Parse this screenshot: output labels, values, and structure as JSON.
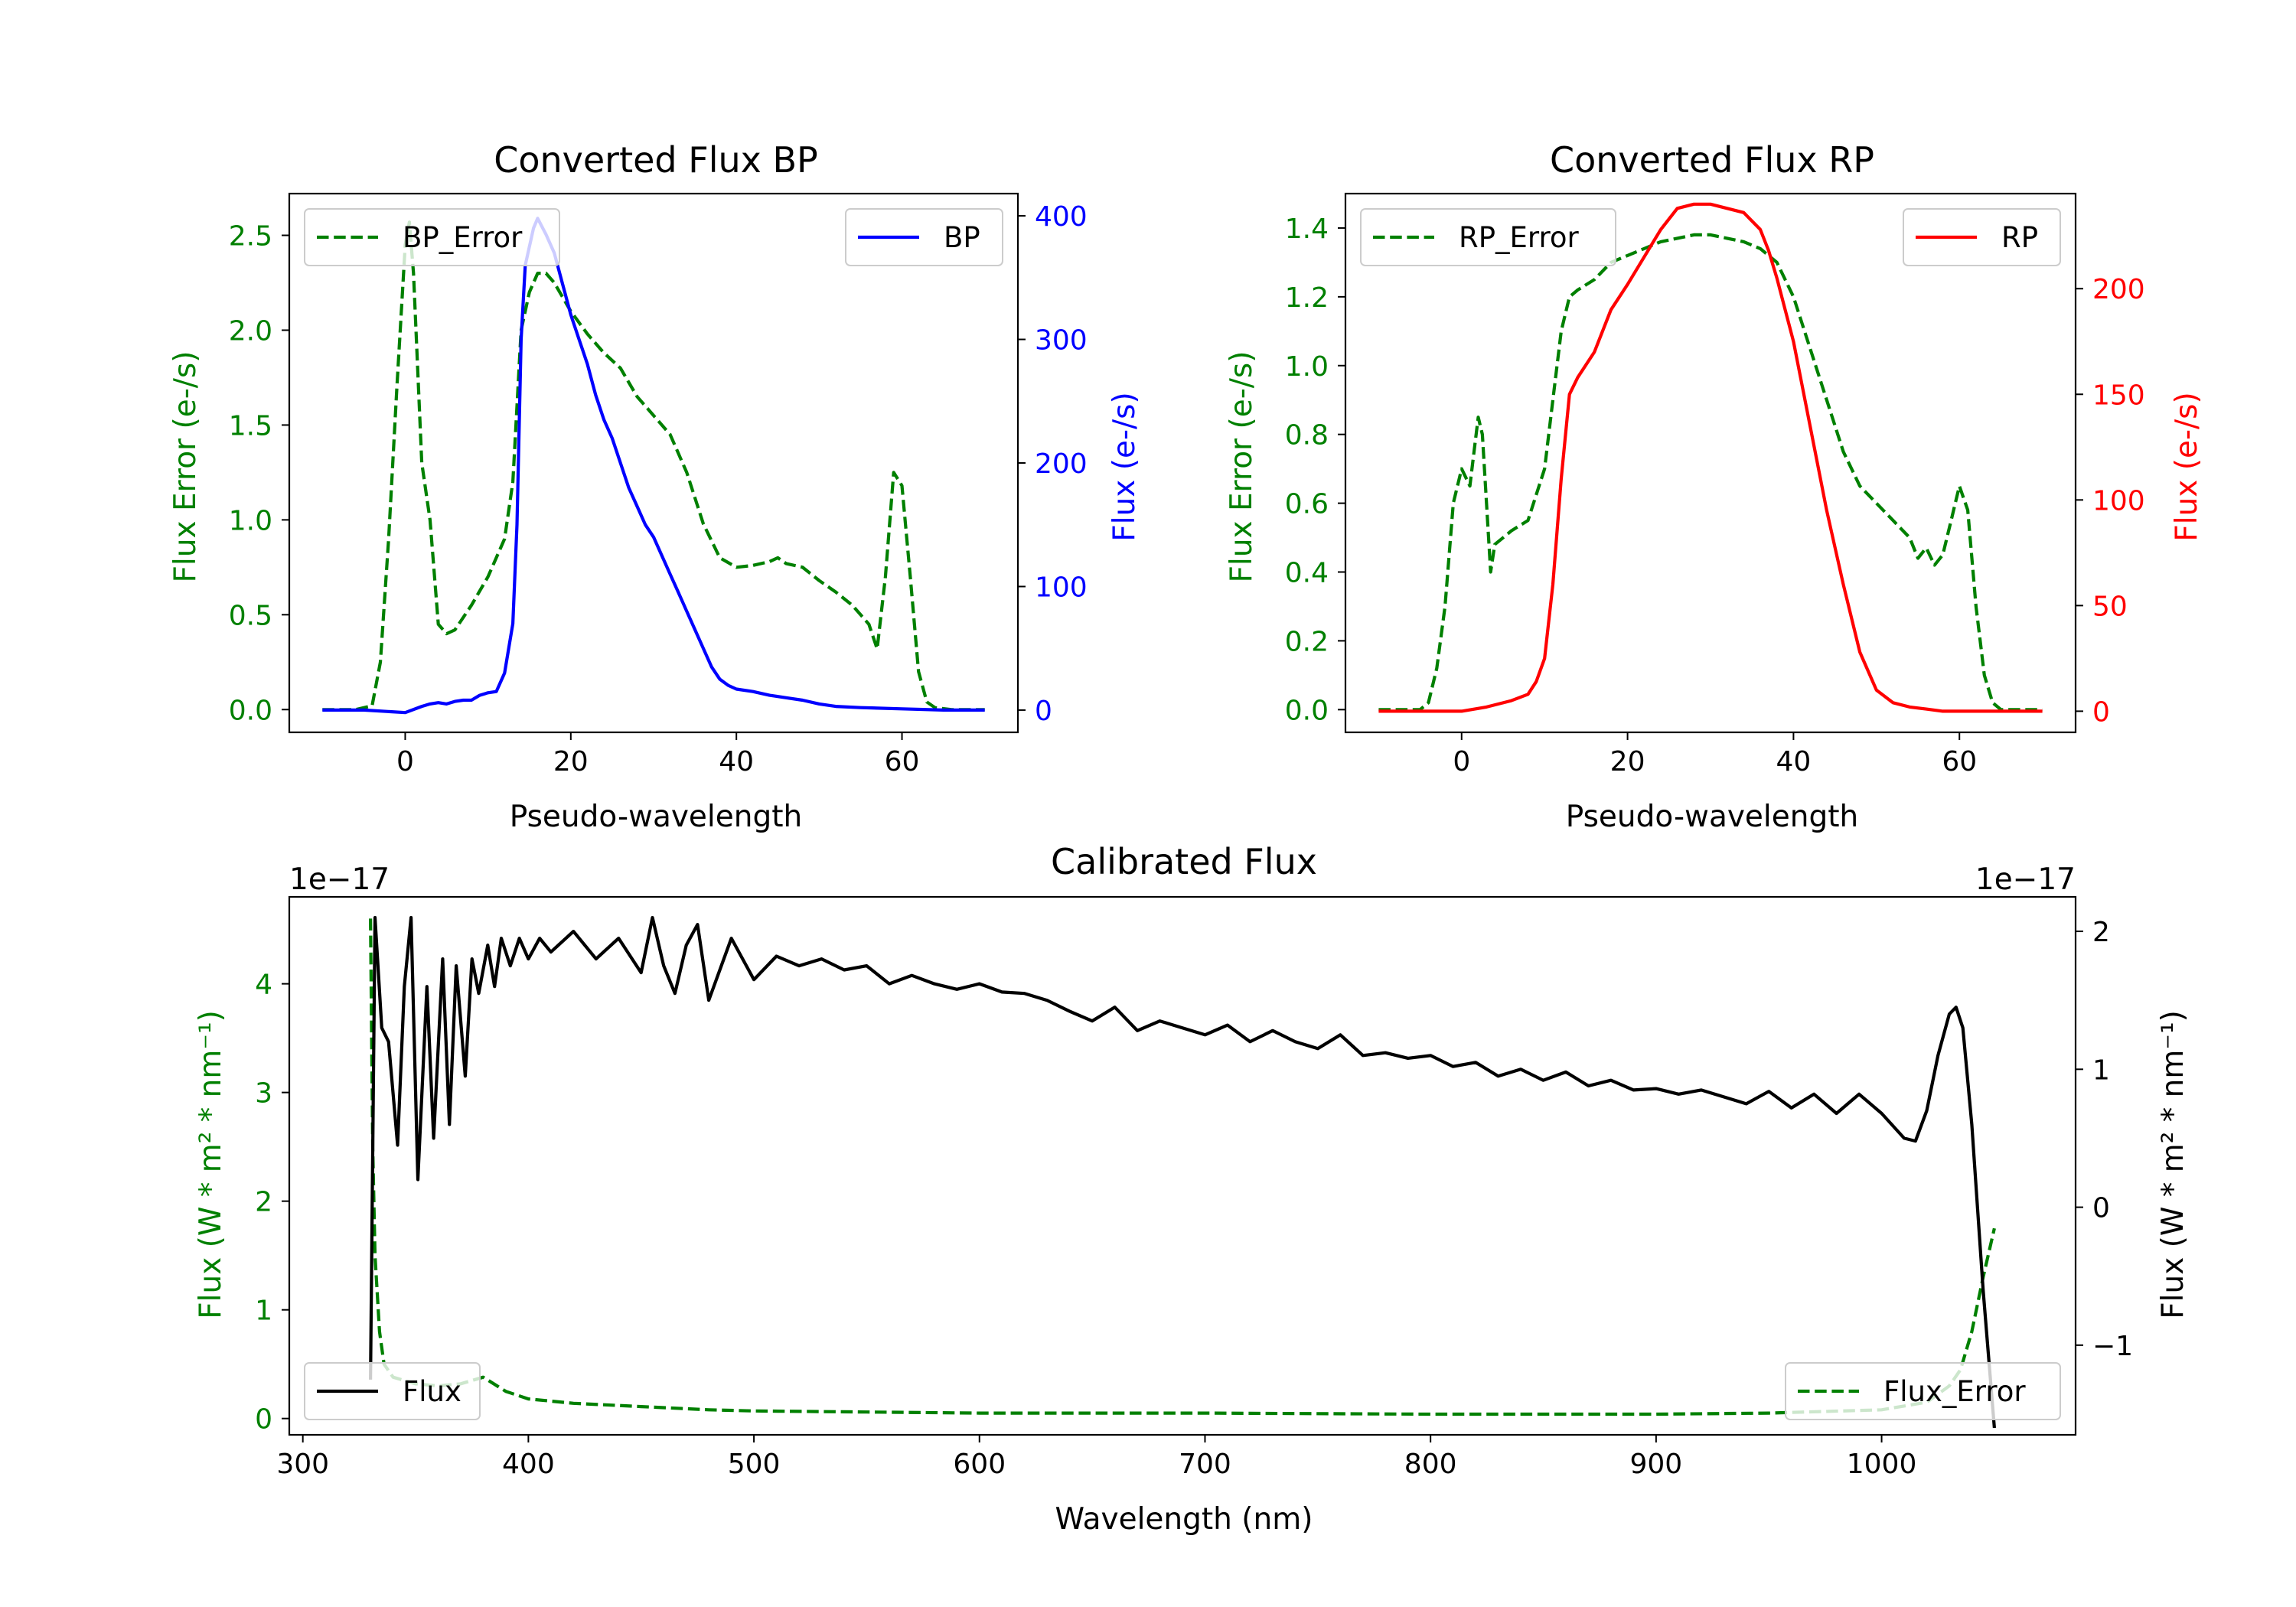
{
  "colors": {
    "bp_error": "#008000",
    "bp": "#0000ff",
    "rp_error": "#008000",
    "rp": "#ff0000",
    "flux": "#000000",
    "flux_error": "#008000",
    "axis": "#000000"
  },
  "chart_data": [
    {
      "id": "bp",
      "type": "line",
      "title": "Converted Flux BP",
      "xlabel": "Pseudo-wavelength",
      "ylabel_left": "Flux Error (e-/s)",
      "ylabel_right": "Flux (e-/s)",
      "xlim": [
        -14,
        74
      ],
      "ylim_left": [
        -0.12,
        2.72
      ],
      "ylim_right": [
        -18,
        418
      ],
      "xticks": [
        0,
        20,
        40,
        60
      ],
      "yticks_left": [
        0.0,
        0.5,
        1.0,
        1.5,
        2.0,
        2.5
      ],
      "yticks_left_labels": [
        "0.0",
        "0.5",
        "1.0",
        "1.5",
        "2.0",
        "2.5"
      ],
      "yticks_right": [
        0,
        100,
        200,
        300,
        400
      ],
      "yticks_right_labels": [
        "0",
        "100",
        "200",
        "300",
        "400"
      ],
      "legend_left": {
        "label": "BP_Error",
        "placement": "upper-left"
      },
      "legend_right": {
        "label": "BP",
        "placement": "upper-right"
      },
      "series": [
        {
          "name": "BP_Error",
          "axis": "left",
          "style": "dashed",
          "color": "#008000",
          "x": [
            -10,
            -6,
            -4,
            -3,
            -2,
            -1,
            0,
            0.5,
            1,
            2,
            3,
            4,
            5,
            6,
            8,
            10,
            12,
            13,
            14,
            15,
            16,
            17,
            18,
            20,
            22,
            24,
            26,
            28,
            30,
            32,
            34,
            36,
            38,
            40,
            42,
            44,
            45,
            46,
            48,
            50,
            52,
            54,
            56,
            57,
            58,
            59,
            60,
            61,
            62,
            63,
            64,
            66,
            68,
            70
          ],
          "y": [
            0.0,
            0.0,
            0.02,
            0.25,
            0.9,
            1.7,
            2.45,
            2.57,
            2.3,
            1.3,
            1.0,
            0.45,
            0.4,
            0.42,
            0.55,
            0.7,
            0.9,
            1.2,
            2.0,
            2.2,
            2.3,
            2.3,
            2.25,
            2.1,
            1.98,
            1.88,
            1.8,
            1.65,
            1.55,
            1.45,
            1.25,
            0.98,
            0.8,
            0.75,
            0.76,
            0.78,
            0.8,
            0.77,
            0.75,
            0.68,
            0.62,
            0.55,
            0.45,
            0.32,
            0.7,
            1.25,
            1.18,
            0.7,
            0.2,
            0.04,
            0.01,
            0.0,
            0.0,
            0.0
          ]
        },
        {
          "name": "BP",
          "axis": "right",
          "style": "solid",
          "color": "#0000ff",
          "x": [
            -10,
            -5,
            0,
            2,
            3,
            4,
            5,
            6,
            7,
            8,
            9,
            10,
            11,
            12,
            13,
            13.5,
            14,
            14.5,
            15,
            15.5,
            16,
            17,
            18,
            19,
            20,
            21,
            22,
            23,
            24,
            25,
            26,
            27,
            28,
            29,
            30,
            31,
            32,
            33,
            34,
            35,
            36,
            37,
            38,
            39,
            40,
            42,
            44,
            46,
            48,
            50,
            52,
            55,
            60,
            65,
            70
          ],
          "y": [
            0,
            0,
            -2,
            3,
            5,
            6,
            5,
            7,
            8,
            8,
            12,
            14,
            15,
            30,
            70,
            150,
            300,
            360,
            375,
            390,
            398,
            385,
            370,
            345,
            320,
            300,
            280,
            255,
            235,
            220,
            200,
            180,
            165,
            150,
            140,
            125,
            110,
            95,
            80,
            65,
            50,
            35,
            25,
            20,
            17,
            15,
            12,
            10,
            8,
            5,
            3,
            2,
            1,
            0,
            0
          ]
        }
      ]
    },
    {
      "id": "rp",
      "type": "line",
      "title": "Converted Flux RP",
      "xlabel": "Pseudo-wavelength",
      "ylabel_left": "Flux Error (e-/s)",
      "ylabel_right": "Flux (e-/s)",
      "xlim": [
        -14,
        74
      ],
      "ylim_left": [
        -0.066,
        1.5
      ],
      "ylim_right": [
        -10,
        245
      ],
      "xticks": [
        0,
        20,
        40,
        60
      ],
      "yticks_left": [
        0.0,
        0.2,
        0.4,
        0.6,
        0.8,
        1.0,
        1.2,
        1.4
      ],
      "yticks_left_labels": [
        "0.0",
        "0.2",
        "0.4",
        "0.6",
        "0.8",
        "1.0",
        "1.2",
        "1.4"
      ],
      "yticks_right": [
        0,
        50,
        100,
        150,
        200
      ],
      "yticks_right_labels": [
        "0",
        "50",
        "100",
        "150",
        "200"
      ],
      "legend_left": {
        "label": "RP_Error",
        "placement": "upper-left"
      },
      "legend_right": {
        "label": "RP",
        "placement": "upper-right"
      },
      "series": [
        {
          "name": "RP_Error",
          "axis": "left",
          "style": "dashed",
          "color": "#008000",
          "x": [
            -10,
            -5,
            -4,
            -3,
            -2,
            -1,
            0,
            1,
            1.5,
            2,
            2.5,
            3,
            3.5,
            4,
            5,
            6,
            8,
            10,
            11,
            12,
            13,
            14,
            16,
            18,
            20,
            22,
            24,
            26,
            28,
            30,
            32,
            34,
            36,
            38,
            40,
            42,
            44,
            46,
            48,
            50,
            52,
            54,
            55,
            56,
            57,
            58,
            59,
            60,
            61,
            62,
            63,
            64,
            65,
            66,
            68,
            70
          ],
          "y": [
            0.0,
            0.0,
            0.02,
            0.12,
            0.3,
            0.6,
            0.7,
            0.65,
            0.75,
            0.85,
            0.8,
            0.6,
            0.4,
            0.48,
            0.5,
            0.52,
            0.55,
            0.7,
            0.9,
            1.1,
            1.2,
            1.22,
            1.25,
            1.3,
            1.32,
            1.34,
            1.36,
            1.37,
            1.38,
            1.38,
            1.37,
            1.36,
            1.34,
            1.3,
            1.2,
            1.05,
            0.9,
            0.75,
            0.65,
            0.6,
            0.55,
            0.5,
            0.44,
            0.47,
            0.42,
            0.45,
            0.55,
            0.65,
            0.58,
            0.3,
            0.1,
            0.02,
            0.0,
            0.0,
            0.0,
            0.0
          ]
        },
        {
          "name": "RP",
          "axis": "right",
          "style": "solid",
          "color": "#ff0000",
          "x": [
            -10,
            -5,
            0,
            3,
            6,
            8,
            9,
            10,
            11,
            12,
            13,
            14,
            16,
            18,
            20,
            22,
            24,
            26,
            28,
            30,
            32,
            34,
            36,
            37,
            38,
            40,
            42,
            44,
            46,
            48,
            50,
            52,
            54,
            56,
            58,
            60,
            65,
            70
          ],
          "y": [
            0,
            0,
            0,
            2,
            5,
            8,
            14,
            25,
            60,
            110,
            150,
            158,
            170,
            190,
            202,
            215,
            228,
            238,
            240,
            240,
            238,
            236,
            228,
            218,
            205,
            175,
            135,
            95,
            60,
            28,
            10,
            4,
            2,
            1,
            0,
            0,
            0,
            0
          ]
        }
      ]
    },
    {
      "id": "calibrated",
      "type": "line",
      "title": "Calibrated Flux",
      "xlabel": "Wavelength (nm)",
      "ylabel_left": "Flux (W * m² * nm⁻¹)",
      "ylabel_right": "Flux (W * m² * nm⁻¹)",
      "offset_left": "1e−17",
      "offset_right": "1e−17",
      "xlim": [
        294,
        1086
      ],
      "ylim_left": [
        -0.15,
        4.8
      ],
      "ylim_right": [
        -1.65,
        2.25
      ],
      "xticks": [
        300,
        400,
        500,
        600,
        700,
        800,
        900,
        1000
      ],
      "yticks_left": [
        0,
        1,
        2,
        3,
        4
      ],
      "yticks_left_labels": [
        "0",
        "1",
        "2",
        "3",
        "4"
      ],
      "yticks_right": [
        -1,
        0,
        1,
        2
      ],
      "yticks_right_labels": [
        "−1",
        "0",
        "1",
        "2"
      ],
      "legend_left": {
        "label": "Flux",
        "placement": "lower-left"
      },
      "legend_right": {
        "label": "Flux_Error",
        "placement": "lower-right"
      },
      "series": [
        {
          "name": "Flux_Error",
          "axis": "left",
          "style": "dashed",
          "color": "#008000",
          "x": [
            330,
            331,
            332,
            334,
            336,
            340,
            350,
            360,
            370,
            380,
            390,
            400,
            420,
            450,
            480,
            500,
            550,
            600,
            640,
            700,
            800,
            900,
            950,
            1000,
            1020,
            1030,
            1035,
            1040,
            1045,
            1050
          ],
          "y": [
            4.6,
            2.5,
            1.5,
            0.8,
            0.5,
            0.38,
            0.32,
            0.3,
            0.32,
            0.38,
            0.25,
            0.18,
            0.14,
            0.11,
            0.08,
            0.07,
            0.06,
            0.05,
            0.05,
            0.05,
            0.04,
            0.04,
            0.05,
            0.08,
            0.15,
            0.3,
            0.45,
            0.8,
            1.3,
            1.75
          ]
        },
        {
          "name": "Flux",
          "axis": "right",
          "style": "solid",
          "color": "#000000",
          "x": [
            330,
            332,
            335,
            338,
            342,
            345,
            348,
            351,
            355,
            358,
            362,
            365,
            368,
            372,
            375,
            378,
            382,
            385,
            388,
            392,
            396,
            400,
            405,
            410,
            420,
            430,
            440,
            450,
            455,
            460,
            465,
            470,
            475,
            480,
            490,
            500,
            510,
            520,
            530,
            540,
            550,
            560,
            570,
            580,
            590,
            600,
            610,
            620,
            630,
            640,
            650,
            660,
            670,
            680,
            690,
            700,
            710,
            720,
            730,
            740,
            750,
            760,
            770,
            780,
            790,
            800,
            810,
            820,
            830,
            840,
            850,
            860,
            870,
            880,
            890,
            900,
            910,
            920,
            930,
            940,
            950,
            960,
            970,
            980,
            990,
            1000,
            1010,
            1015,
            1020,
            1025,
            1030,
            1033,
            1036,
            1040,
            1045,
            1050
          ],
          "y": [
            -1.25,
            2.1,
            1.3,
            1.2,
            0.45,
            1.6,
            2.1,
            0.2,
            1.6,
            0.5,
            1.8,
            0.6,
            1.75,
            0.95,
            1.8,
            1.55,
            1.9,
            1.6,
            1.95,
            1.75,
            1.95,
            1.8,
            1.95,
            1.85,
            2.0,
            1.8,
            1.95,
            1.7,
            2.1,
            1.75,
            1.55,
            1.9,
            2.05,
            1.5,
            1.95,
            1.65,
            1.82,
            1.75,
            1.8,
            1.72,
            1.75,
            1.62,
            1.68,
            1.62,
            1.58,
            1.62,
            1.56,
            1.55,
            1.5,
            1.42,
            1.35,
            1.45,
            1.28,
            1.35,
            1.3,
            1.25,
            1.32,
            1.2,
            1.28,
            1.2,
            1.15,
            1.25,
            1.1,
            1.12,
            1.08,
            1.1,
            1.02,
            1.05,
            0.95,
            1.0,
            0.92,
            0.98,
            0.88,
            0.92,
            0.85,
            0.86,
            0.82,
            0.85,
            0.8,
            0.75,
            0.84,
            0.72,
            0.82,
            0.68,
            0.82,
            0.68,
            0.5,
            0.48,
            0.7,
            1.1,
            1.4,
            1.45,
            1.3,
            0.6,
            -0.6,
            -1.6
          ]
        }
      ]
    }
  ]
}
